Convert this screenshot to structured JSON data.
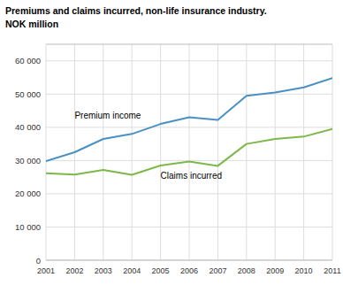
{
  "chart_data": {
    "type": "line",
    "title": "Premiums and claims incurred, non-life insurance industry.",
    "subtitle": "NOK million",
    "x": [
      2001,
      2002,
      2003,
      2004,
      2005,
      2006,
      2007,
      2008,
      2009,
      2010,
      2011
    ],
    "series": [
      {
        "name": "Premium income",
        "color": "#4a90c4",
        "values": [
          29800,
          32500,
          36500,
          38000,
          41000,
          43000,
          42200,
          49500,
          50500,
          52000,
          54800
        ]
      },
      {
        "name": "Claims incurred",
        "color": "#7db84a",
        "values": [
          26200,
          25800,
          27200,
          25700,
          28500,
          29700,
          28400,
          35000,
          36500,
          37200,
          39500
        ]
      }
    ],
    "xlim": [
      2001,
      2011
    ],
    "xticks": [
      2001,
      2002,
      2003,
      2004,
      2005,
      2006,
      2007,
      2008,
      2009,
      2010,
      2011
    ],
    "ylim": [
      0,
      65000
    ],
    "yticks": [
      0,
      {
        "value": 10000,
        "label": "10 000"
      },
      {
        "value": 20000,
        "label": "20 000"
      },
      {
        "value": 30000,
        "label": "30 000"
      },
      {
        "value": 40000,
        "label": "40 000"
      },
      {
        "value": 50000,
        "label": "50 000"
      },
      {
        "value": 60000,
        "label": "60 000"
      }
    ],
    "grid": true
  }
}
